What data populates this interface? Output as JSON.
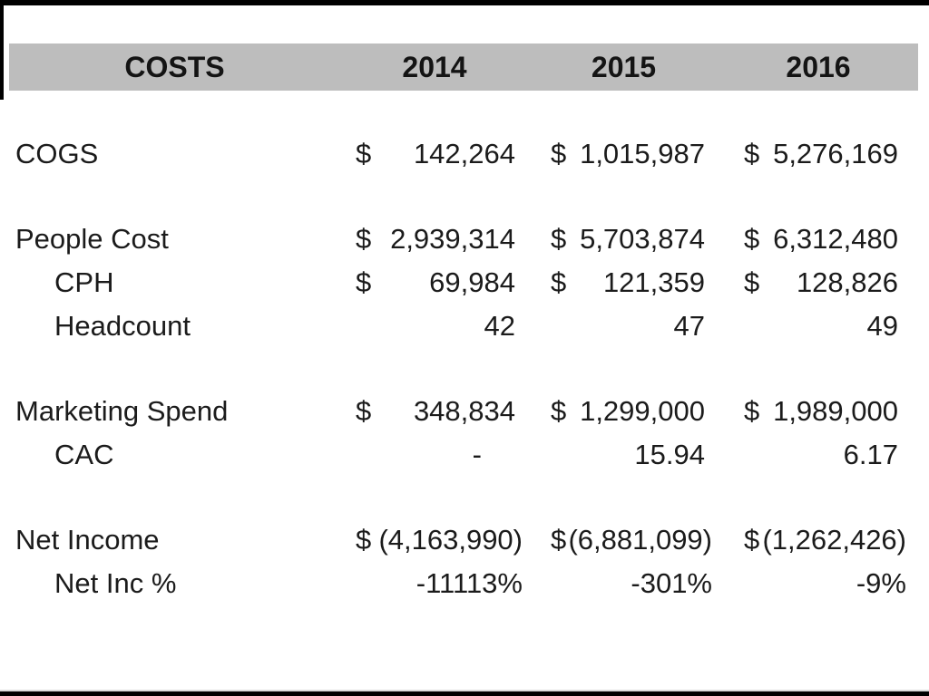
{
  "table": {
    "header": {
      "costs": "COSTS",
      "y2014": "2014",
      "y2015": "2015",
      "y2016": "2016"
    },
    "rows": [
      {
        "label": "COGS",
        "dollars": [
          "$",
          "$",
          "$"
        ],
        "values": [
          "142,264",
          "1,015,987",
          "5,276,169"
        ]
      },
      {
        "label": "People Cost",
        "dollars": [
          "$",
          "$",
          "$"
        ],
        "values": [
          "2,939,314",
          "5,703,874",
          "6,312,480"
        ]
      },
      {
        "label": "CPH",
        "dollars": [
          "$",
          "$",
          "$"
        ],
        "values": [
          "69,984",
          "121,359",
          "128,826"
        ]
      },
      {
        "label": "Headcount",
        "dollars": [
          "",
          "",
          ""
        ],
        "values": [
          "42",
          "47",
          "49"
        ]
      },
      {
        "label": "Marketing Spend",
        "dollars": [
          "$",
          "$",
          "$"
        ],
        "values": [
          "348,834",
          "1,299,000",
          "1,989,000"
        ]
      },
      {
        "label": "CAC",
        "dollars": [
          "",
          "",
          ""
        ],
        "values": [
          "-",
          "15.94",
          "6.17"
        ]
      },
      {
        "label": "Net Income",
        "dollars": [
          "$",
          "$",
          "$"
        ],
        "values": [
          "(4,163,990)",
          "(6,881,099)",
          "(1,262,426)"
        ]
      },
      {
        "label": "Net Inc %",
        "dollars": [
          "",
          "",
          ""
        ],
        "values": [
          "-11113%",
          "-301%",
          "-9%"
        ]
      }
    ]
  },
  "colors": {
    "header_bg": "#bdbdbd",
    "text": "#1b1b1b",
    "frame": "#000000",
    "background": "#ffffff"
  }
}
